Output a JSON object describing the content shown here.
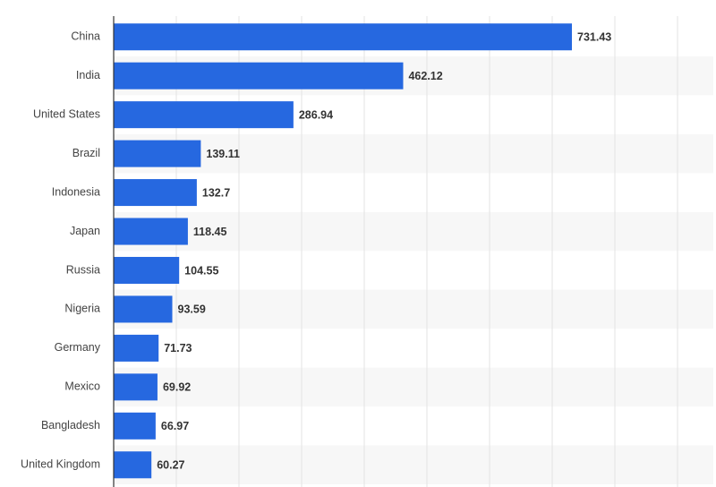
{
  "chart_data": {
    "type": "hbar",
    "categories": [
      "China",
      "India",
      "United States",
      "Brazil",
      "Indonesia",
      "Japan",
      "Russia",
      "Nigeria",
      "Germany",
      "Mexico",
      "Bangladesh",
      "United Kingdom"
    ],
    "values": [
      731.43,
      462.12,
      286.94,
      139.11,
      132.7,
      118.45,
      104.55,
      93.59,
      71.73,
      69.92,
      66.97,
      60.27
    ],
    "color": "#2668e0",
    "xlim": [
      0,
      900
    ],
    "xticks": [
      0,
      100,
      200,
      300,
      400,
      500,
      600,
      700,
      800,
      900
    ],
    "grid": true
  }
}
